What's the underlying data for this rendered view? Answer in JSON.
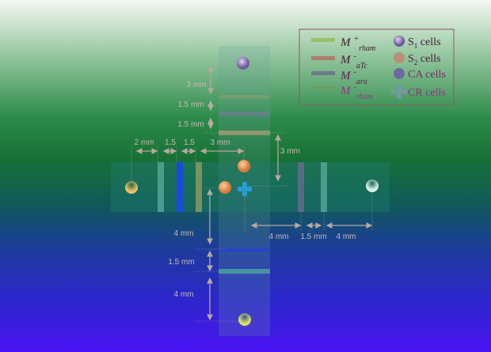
{
  "legend": {
    "markers": [
      {
        "symbol": "M",
        "sup": "+",
        "sub": "rham",
        "color": "#9bbf6a"
      },
      {
        "symbol": "M",
        "sup": "-",
        "sub": "aTc",
        "color": "#b07c6e"
      },
      {
        "symbol": "M",
        "sup": "-",
        "sub": "ara",
        "color": "#6e7c8a"
      },
      {
        "symbol": "M",
        "sup": "-",
        "sub": "rham",
        "color": "#7a9a48"
      }
    ],
    "cells": [
      {
        "label_main": "S",
        "label_sub": "1",
        "label_rest": " cells",
        "color": "#9a86c8"
      },
      {
        "label_main": "S",
        "label_sub": "2",
        "label_rest": " cells",
        "color": "#b8907a"
      },
      {
        "label_main": "CA cells",
        "color": "#6c6aa0"
      },
      {
        "label_main": "CR cells",
        "color": "#7a9aaa"
      }
    ]
  },
  "dimensions": {
    "top": [
      "3 mm",
      "1.5 mm",
      "1.5 mm"
    ],
    "left": [
      "2 mm",
      "1.5",
      "1.5",
      "3 mm"
    ],
    "center_right": "3 mm",
    "right": [
      "4 mm",
      "1.5 mm",
      "4 mm"
    ],
    "bottom": [
      "4 mm",
      "1.5 mm",
      "4 mm"
    ]
  },
  "colors": {
    "channel": "#1f7a6a",
    "dimension_line": "#b8a8a0",
    "s2_cell": "#f0a060",
    "cr_cell": "#2a9ad0"
  }
}
